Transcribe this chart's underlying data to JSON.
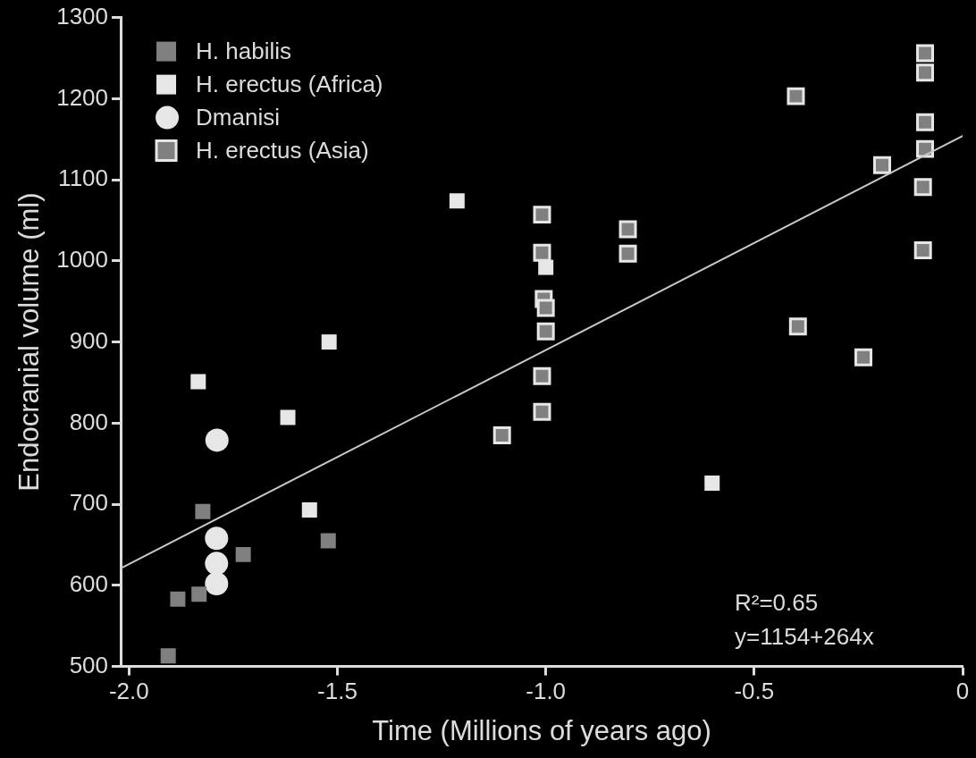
{
  "chart_data": {
    "type": "scatter",
    "xlabel": "Time (Millions of years ago)",
    "ylabel": "Endocranial volume (ml)",
    "xlim": [
      -2.02,
      0
    ],
    "ylim": [
      500,
      1300
    ],
    "xticks": [
      {
        "value": -2,
        "label": "-2.0"
      },
      {
        "value": -1.5,
        "label": "-1.5"
      },
      {
        "value": -1,
        "label": "-1.0"
      },
      {
        "value": -0.5,
        "label": "-0.5"
      },
      0
    ],
    "yticks": [
      500,
      600,
      700,
      800,
      900,
      1000,
      1100,
      1200,
      1300
    ],
    "grid": false,
    "legend": "top left",
    "marker": "square",
    "annotations": [
      "R²=0.65",
      "y=1154+264x"
    ],
    "series": [
      {
        "name": "H. habilis",
        "color": "#808080",
        "x": [
          -1.906,
          -1.883,
          -1.832,
          -1.823,
          -1.726,
          -1.522
        ],
        "values": [
          513,
          583,
          589,
          691,
          638,
          655
        ]
      },
      {
        "name": "H. erectus (Africa)",
        "color": "#e6e6e6",
        "x": [
          -1.834,
          -1.619,
          -1.567,
          -1.52,
          -1.213,
          -1.0,
          -0.601
        ],
        "values": [
          851,
          807,
          693,
          900,
          1074,
          992,
          726
        ]
      },
      {
        "name": "Dmanisi",
        "color": "#e6e6e6",
        "marker": "circle",
        "x": [
          -1.789,
          -1.79,
          -1.79,
          -1.79
        ],
        "values": [
          779,
          658,
          627,
          602
        ]
      },
      {
        "name": "H. erectus (Asia)",
        "color": "#808080",
        "x": [
          -1.009,
          -1.009,
          -1.005,
          -1.0,
          -1.0,
          -1.009,
          -1.009,
          -1.105,
          -0.803,
          -0.803,
          -0.4,
          -0.395,
          -0.193,
          -0.238,
          -0.09,
          -0.09,
          -0.09,
          -0.09,
          -0.095,
          -0.095
        ],
        "values": [
          1057,
          1010,
          953,
          942,
          913,
          858,
          814,
          785,
          1039,
          1009,
          1203,
          919,
          1118,
          881,
          1256,
          1232,
          1171,
          1138,
          1091,
          1013
        ]
      },
      {
        "type": "line",
        "color": "#c8c8c8",
        "marker": "none",
        "line_style": "solid",
        "x": [
          -2.02,
          0
        ],
        "values": [
          621,
          1154
        ]
      }
    ]
  }
}
